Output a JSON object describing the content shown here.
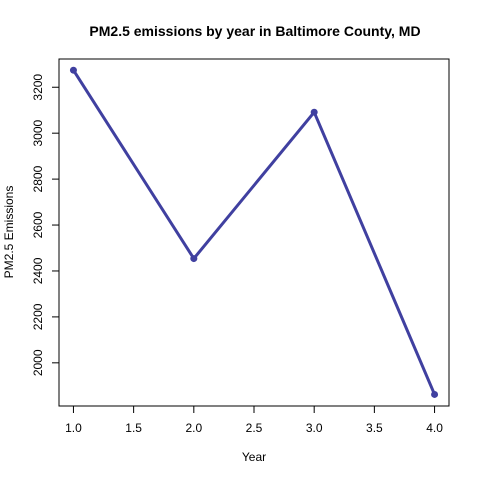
{
  "chart_data": {
    "type": "line",
    "title": "PM2.5 emissions by year in Baltimore County, MD",
    "xlabel": "Year",
    "ylabel": "PM2.5 Emissions",
    "x": [
      1.0,
      2.0,
      3.0,
      4.0
    ],
    "series": [
      {
        "values": [
          3274.18,
          2453.92,
          3091.35,
          1862.28
        ],
        "color": "#4040a0"
      }
    ],
    "xlim": [
      0.88,
      4.12
    ],
    "ylim": [
      1812,
      3323
    ],
    "xticks": [
      1.0,
      1.5,
      2.0,
      2.5,
      3.0,
      3.5,
      4.0
    ],
    "xtick_labels": [
      "1.0",
      "1.5",
      "2.0",
      "2.5",
      "3.0",
      "3.5",
      "4.0"
    ],
    "yticks": [
      2000,
      2200,
      2400,
      2600,
      2800,
      3000,
      3200
    ],
    "ytick_labels": [
      "2000",
      "2200",
      "2400",
      "2600",
      "2800",
      "3000",
      "3200"
    ],
    "grid": false,
    "legend": "none"
  }
}
